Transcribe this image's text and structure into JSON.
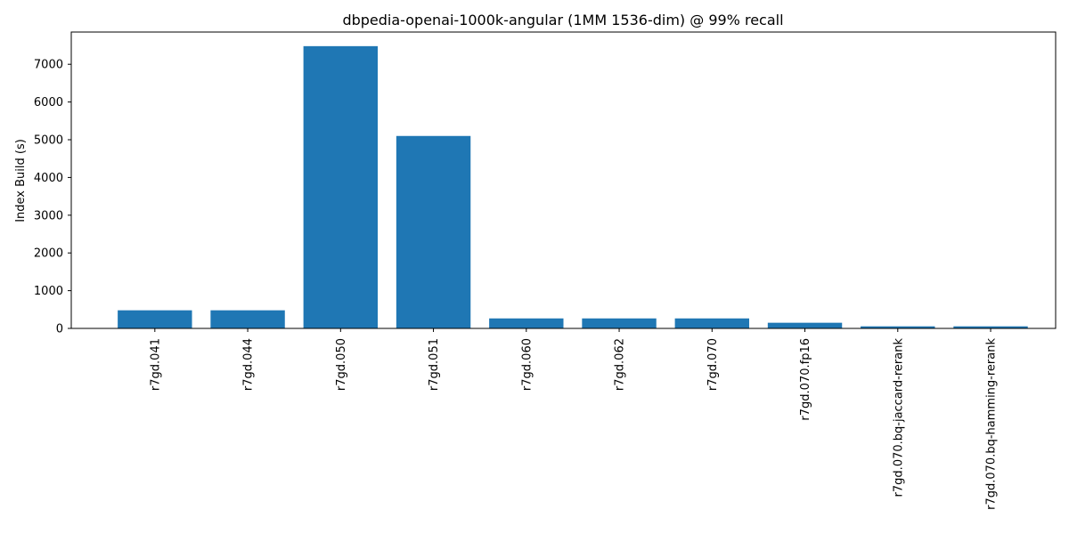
{
  "chart_data": {
    "type": "bar",
    "title": "dbpedia-openai-1000k-angular (1MM 1536-dim) @ 99% recall",
    "xlabel": "",
    "ylabel": "Index Build (s)",
    "categories": [
      "r7gd.041",
      "r7gd.044",
      "r7gd.050",
      "r7gd.051",
      "r7gd.060",
      "r7gd.062",
      "r7gd.070",
      "r7gd.070.fp16",
      "r7gd.070.bq-jaccard-rerank",
      "r7gd.070.bq-hamming-rerank"
    ],
    "values": [
      480,
      480,
      7480,
      5100,
      265,
      265,
      265,
      150,
      55,
      55
    ],
    "ylim": [
      0,
      7854
    ],
    "yticks": [
      0,
      1000,
      2000,
      3000,
      4000,
      5000,
      6000,
      7000
    ],
    "bar_color": "#1f77b4",
    "grid": false,
    "legend": "none"
  }
}
